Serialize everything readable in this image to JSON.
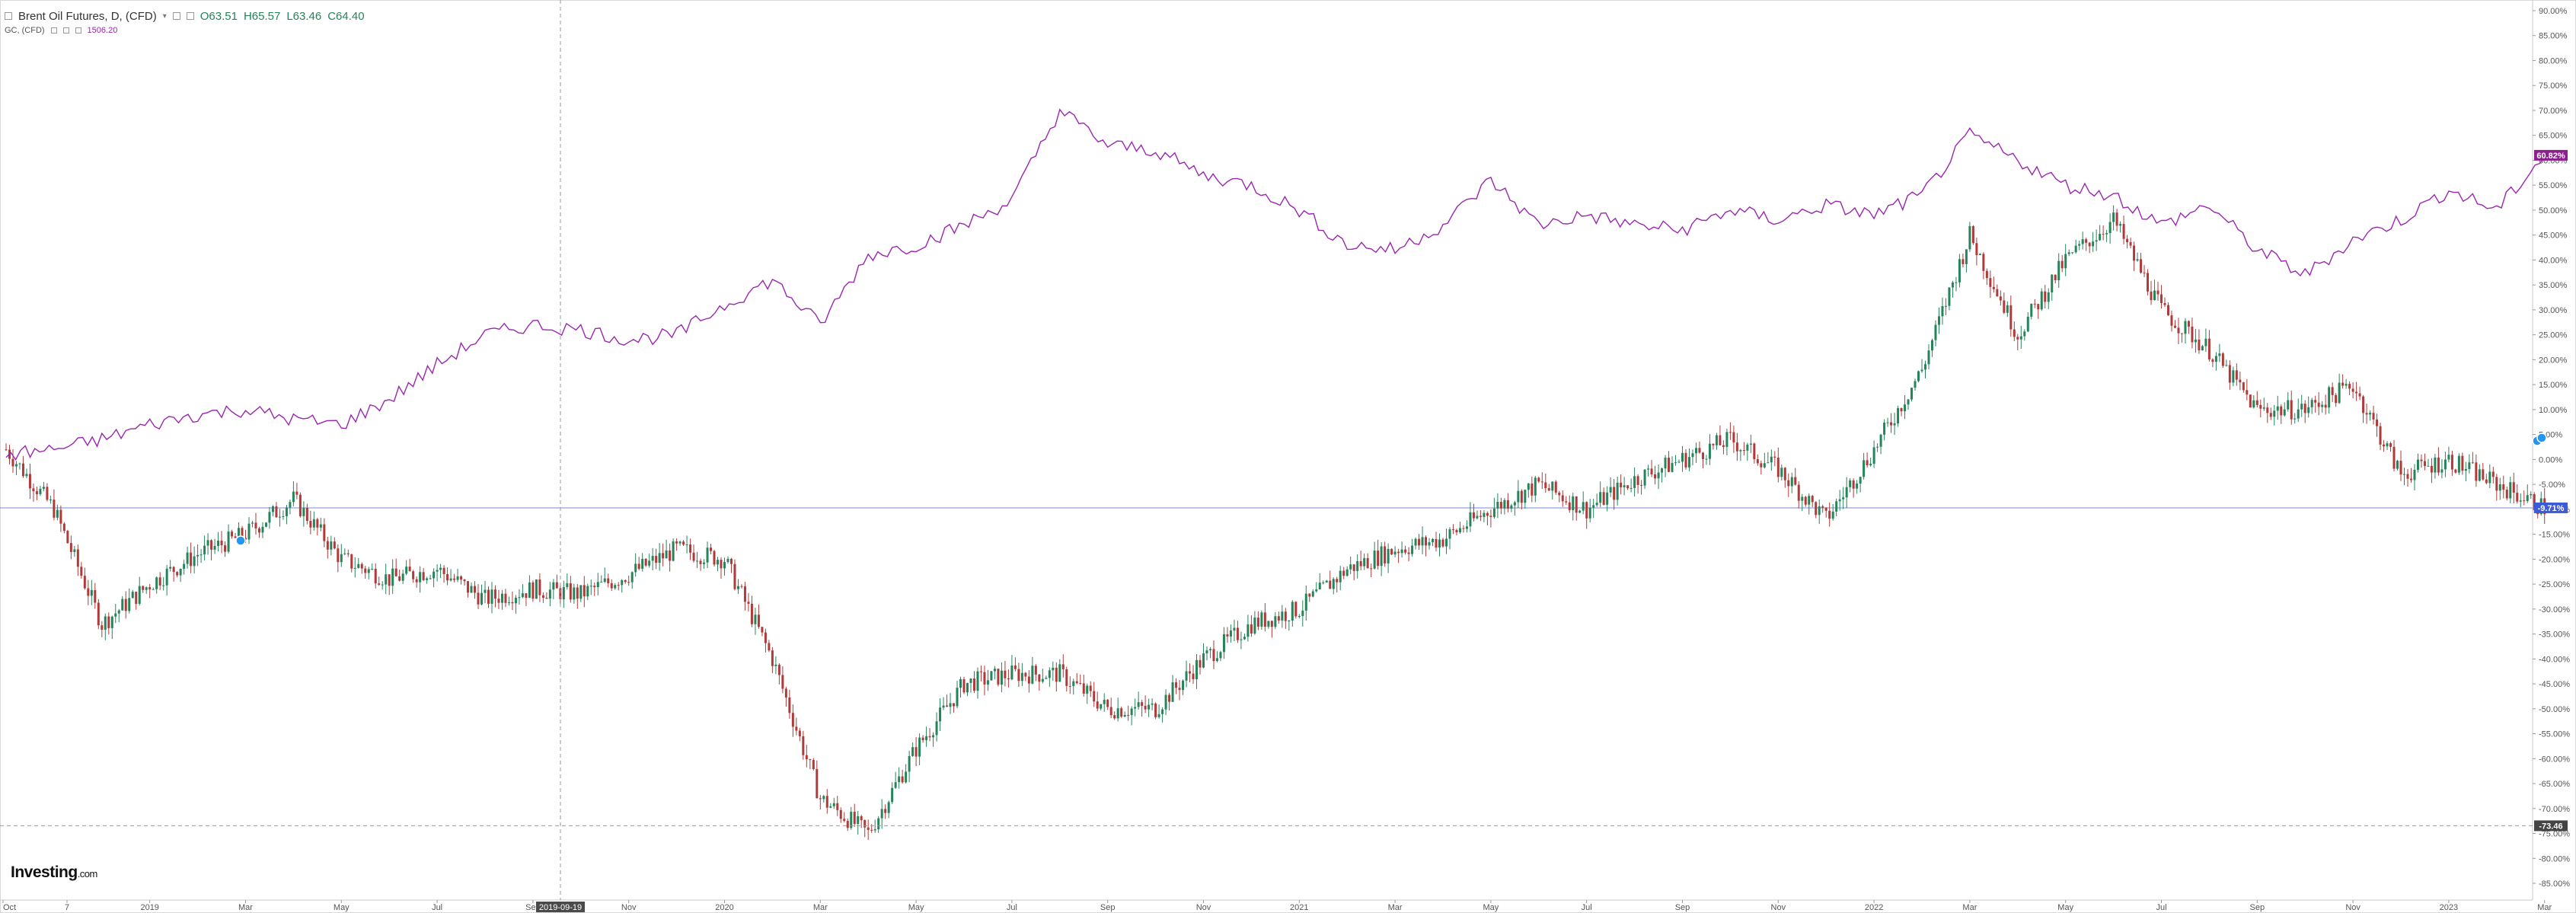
{
  "legend": {
    "main_title": "Brent Oil Futures, D, (CFD)",
    "open": "O63.51",
    "high": "H65.57",
    "low": "L63.46",
    "close": "C64.40",
    "overlay_title": "GC, (CFD)",
    "overlay_value": "1506.20"
  },
  "branding": {
    "logo": "Investing",
    "logo_suffix": ".com"
  },
  "crosshair": {
    "date_label": "2019-09-19"
  },
  "price_tags": {
    "gold_current": "60.82%",
    "brent_current": "-9.71%",
    "cursor_level": "-73.46"
  },
  "colors": {
    "gold_line": "#9b27af",
    "candle_up": "#26845b",
    "candle_down": "#b03a3a",
    "baseline": "#3f56c9",
    "gold_tag_bg": "#8e1f8e",
    "brent_tag_bg": "#3b5bdb",
    "cursor_tag_bg": "#444444"
  },
  "chart_data": {
    "type": "line",
    "title": "Brent Oil Futures, D, (CFD)",
    "ylabel": "",
    "y_unit": "%",
    "ylim": [
      -85,
      90
    ],
    "y_ticks": [
      "90.00%",
      "85.00%",
      "80.00%",
      "75.00%",
      "70.00%",
      "65.00%",
      "60.00%",
      "55.00%",
      "50.00%",
      "45.00%",
      "40.00%",
      "35.00%",
      "30.00%",
      "25.00%",
      "20.00%",
      "15.00%",
      "10.00%",
      "5.00%",
      "0.00%",
      "-5.00%",
      "-10.00%",
      "-15.00%",
      "-20.00%",
      "-25.00%",
      "-30.00%",
      "-35.00%",
      "-40.00%",
      "-45.00%",
      "-50.00%",
      "-55.00%",
      "-60.00%",
      "-65.00%",
      "-70.00%",
      "-75.00%",
      "-80.00%",
      "-85.00%"
    ],
    "x_ticks": [
      "Oct",
      "7",
      "2019",
      "Mar",
      "May",
      "Jul",
      "Sep",
      "Nov",
      "2020",
      "Mar",
      "May",
      "Jul",
      "Sep",
      "Nov",
      "2021",
      "Mar",
      "May",
      "Jul",
      "Sep",
      "Nov",
      "2022",
      "Mar",
      "May",
      "Jul",
      "Sep",
      "Nov",
      "2023",
      "Mar"
    ],
    "grid": false,
    "series": [
      {
        "name": "GC, (CFD)",
        "style": "line",
        "x": [
          "2018-10",
          "2018-11",
          "2018-12",
          "2019-01",
          "2019-02",
          "2019-03",
          "2019-04",
          "2019-05",
          "2019-06",
          "2019-07",
          "2019-08",
          "2019-09",
          "2019-10",
          "2019-11",
          "2019-12",
          "2020-01",
          "2020-02",
          "2020-03",
          "2020-04",
          "2020-05",
          "2020-06",
          "2020-07",
          "2020-08",
          "2020-09",
          "2020-10",
          "2020-11",
          "2020-12",
          "2021-01",
          "2021-02",
          "2021-03",
          "2021-04",
          "2021-05",
          "2021-06",
          "2021-07",
          "2021-08",
          "2021-09",
          "2021-10",
          "2021-11",
          "2021-12",
          "2022-01",
          "2022-02",
          "2022-03",
          "2022-04",
          "2022-05",
          "2022-06",
          "2022-07",
          "2022-08",
          "2022-09",
          "2022-10",
          "2022-11",
          "2022-12",
          "2023-01",
          "2023-02",
          "2023-03"
        ],
        "values": [
          1,
          2,
          4,
          7,
          9,
          10,
          8,
          7,
          12,
          19,
          25,
          27,
          26,
          24,
          25,
          31,
          36,
          27,
          41,
          43,
          47,
          52,
          70,
          63,
          62,
          57,
          55,
          50,
          43,
          42,
          47,
          56,
          47,
          49,
          47,
          46,
          50,
          48,
          51,
          49,
          53,
          65,
          60,
          55,
          53,
          47,
          51,
          42,
          37,
          44,
          48,
          54,
          50,
          61
        ]
      },
      {
        "name": "Brent Oil Futures, D, (CFD)",
        "style": "candlestick",
        "x": [
          "2018-10",
          "2018-11",
          "2018-12",
          "2019-01",
          "2019-02",
          "2019-03",
          "2019-04",
          "2019-05",
          "2019-06",
          "2019-07",
          "2019-08",
          "2019-09",
          "2019-10",
          "2019-11",
          "2019-12",
          "2020-01",
          "2020-02",
          "2020-03",
          "2020-04",
          "2020-05",
          "2020-06",
          "2020-07",
          "2020-08",
          "2020-09",
          "2020-10",
          "2020-11",
          "2020-12",
          "2021-01",
          "2021-02",
          "2021-03",
          "2021-04",
          "2021-05",
          "2021-06",
          "2021-07",
          "2021-08",
          "2021-09",
          "2021-10",
          "2021-11",
          "2021-12",
          "2022-01",
          "2022-02",
          "2022-03",
          "2022-04",
          "2022-05",
          "2022-06",
          "2022-07",
          "2022-08",
          "2022-09",
          "2022-10",
          "2022-11",
          "2022-12",
          "2023-01",
          "2023-02",
          "2023-03"
        ],
        "values": [
          2,
          -10,
          -33,
          -25,
          -19,
          -15,
          -8,
          -20,
          -24,
          -22,
          -28,
          -26,
          -27,
          -23,
          -18,
          -20,
          -40,
          -68,
          -75,
          -58,
          -45,
          -43,
          -43,
          -50,
          -50,
          -40,
          -33,
          -30,
          -22,
          -18,
          -16,
          -10,
          -5,
          -10,
          -4,
          0,
          4,
          -2,
          -12,
          2,
          18,
          45,
          25,
          40,
          48,
          30,
          22,
          10,
          10,
          15,
          -3,
          0,
          -5,
          -9.71
        ]
      }
    ]
  }
}
